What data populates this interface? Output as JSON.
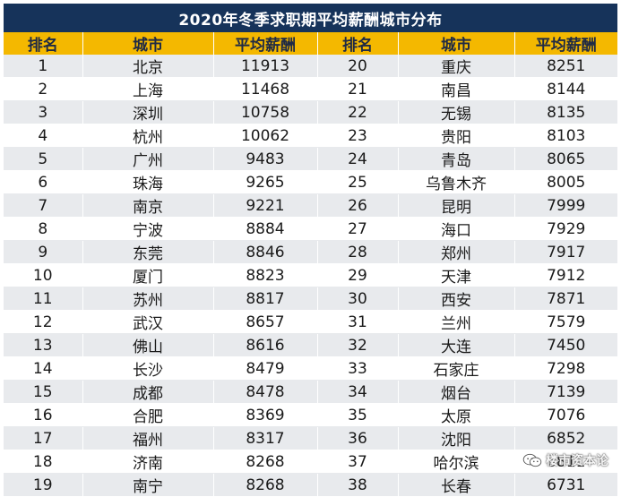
{
  "title": "2020年冬季求职期平均薪酬城市分布",
  "headers": [
    "排名",
    "城市",
    "平均薪酬",
    "排名",
    "城市",
    "平均薪酬"
  ],
  "rows": [
    [
      "1",
      "北京",
      "11913",
      "20",
      "重庆",
      "8251"
    ],
    [
      "2",
      "上海",
      "11468",
      "21",
      "南昌",
      "8144"
    ],
    [
      "3",
      "深圳",
      "10758",
      "22",
      "无锡",
      "8135"
    ],
    [
      "4",
      "杭州",
      "10062",
      "23",
      "贵阳",
      "8103"
    ],
    [
      "5",
      "广州",
      "9483",
      "24",
      "青岛",
      "8065"
    ],
    [
      "6",
      "珠海",
      "9265",
      "25",
      "乌鲁木齐",
      "8005"
    ],
    [
      "7",
      "南京",
      "9221",
      "26",
      "昆明",
      "7999"
    ],
    [
      "8",
      "宁波",
      "8884",
      "27",
      "海口",
      "7929"
    ],
    [
      "9",
      "东莞",
      "8846",
      "28",
      "郑州",
      "7917"
    ],
    [
      "10",
      "厦门",
      "8823",
      "29",
      "天津",
      "7912"
    ],
    [
      "11",
      "苏州",
      "8817",
      "30",
      "西安",
      "7871"
    ],
    [
      "12",
      "武汉",
      "8657",
      "31",
      "兰州",
      "7579"
    ],
    [
      "13",
      "佛山",
      "8616",
      "32",
      "大连",
      "7450"
    ],
    [
      "14",
      "长沙",
      "8479",
      "33",
      "石家庄",
      "7298"
    ],
    [
      "15",
      "成都",
      "8478",
      "34",
      "烟台",
      "7139"
    ],
    [
      "16",
      "合肥",
      "8369",
      "35",
      "太原",
      "7076"
    ],
    [
      "17",
      "福州",
      "8317",
      "36",
      "沈阳",
      "6852"
    ],
    [
      "18",
      "济南",
      "8268",
      "37",
      "哈尔滨",
      "6811"
    ],
    [
      "19",
      "南宁",
      "8268",
      "38",
      "长春",
      "6731"
    ]
  ],
  "watermark": {
    "text": "楼市资本论",
    "icon": "wechat-icon"
  },
  "colors": {
    "title_bg": "#16335a",
    "header_bg": "#f4b800",
    "stripe": "#e8eaed"
  }
}
